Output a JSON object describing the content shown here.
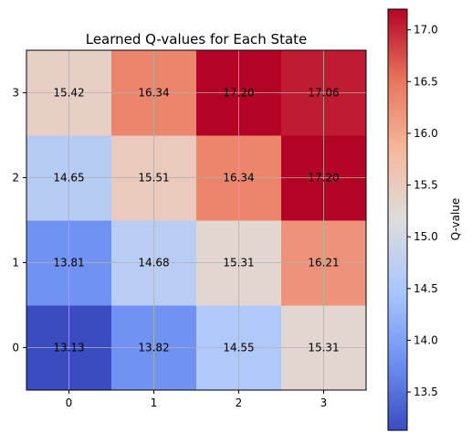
{
  "chart_data": {
    "type": "heatmap",
    "title": "Learned Q-values for Each State",
    "xlabel": "",
    "ylabel": "",
    "x_categories": [
      "0",
      "1",
      "2",
      "3"
    ],
    "y_categories": [
      "0",
      "1",
      "2",
      "3"
    ],
    "values": [
      [
        13.13,
        13.82,
        14.55,
        15.31
      ],
      [
        13.81,
        14.68,
        15.31,
        16.21
      ],
      [
        14.65,
        15.51,
        16.34,
        17.2
      ],
      [
        15.42,
        16.34,
        17.2,
        17.06
      ]
    ],
    "value_labels": [
      [
        "13.13",
        "13.82",
        "14.55",
        "15.31"
      ],
      [
        "13.81",
        "14.68",
        "15.31",
        "16.21"
      ],
      [
        "14.65",
        "15.51",
        "16.34",
        "17.20"
      ],
      [
        "15.42",
        "16.34",
        "17.20",
        "17.06"
      ]
    ],
    "colormap": "coolwarm",
    "colormap_stops": [
      "#3b4cc0",
      "#6f92f3",
      "#aac7fd",
      "#dddddd",
      "#f7b89c",
      "#e7745b",
      "#b40426"
    ],
    "vmin": 13.13,
    "vmax": 17.2,
    "grid": true,
    "colorbar": {
      "label": "Q-value",
      "ticks": [
        13.5,
        14.0,
        14.5,
        15.0,
        15.5,
        16.0,
        16.5,
        17.0
      ],
      "tick_labels": [
        "13.5",
        "14.0",
        "14.5",
        "15.0",
        "15.5",
        "16.0",
        "16.5",
        "17.0"
      ]
    }
  }
}
